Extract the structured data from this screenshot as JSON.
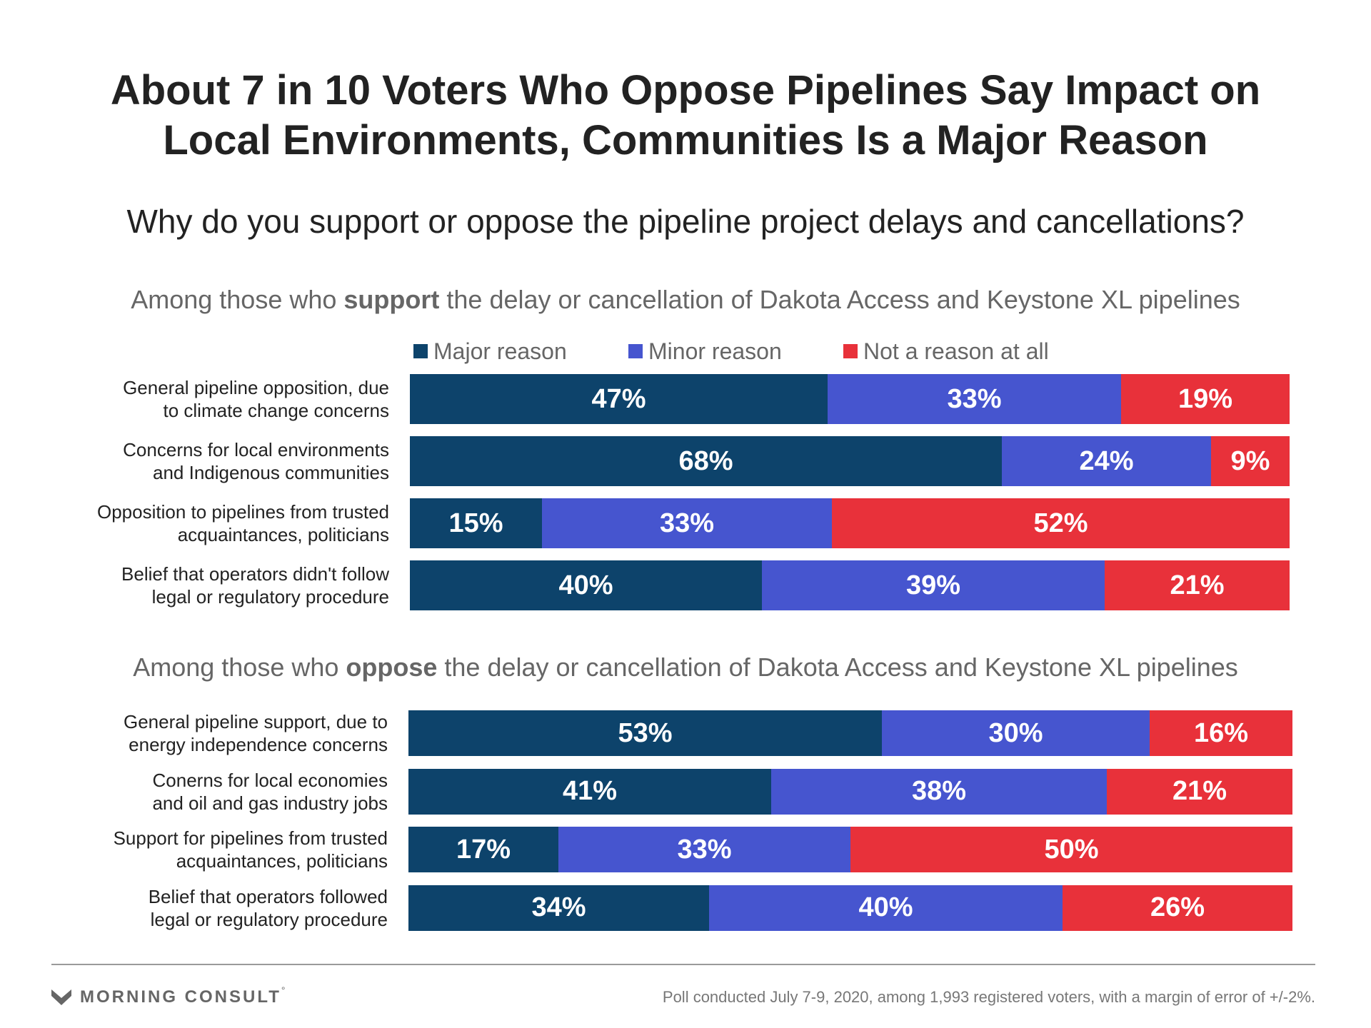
{
  "title": {
    "line1": "About 7 in 10 Voters Who Oppose Pipelines Say Impact on",
    "line2": "Local Environments, Communities Is a Major Reason"
  },
  "question": "Why do you support or oppose the pipeline project delays and cancellations?",
  "colors": {
    "major": "#0d436b",
    "minor": "#4655cf",
    "not": "#e8313a"
  },
  "chart_data": [
    {
      "type": "bar",
      "stacked": true,
      "orientation": "horizontal",
      "heading": {
        "prefix": "Among those who ",
        "emphasis": "support",
        "suffix": " the delay or cancellation of Dakota Access and Keystone XL pipelines"
      },
      "legend": [
        "Major reason",
        "Minor reason",
        "Not a reason at all"
      ],
      "categories": [
        "General pipeline opposition, due to climate change concerns",
        "Concerns for local environments and Indigenous communities",
        "Opposition to pipelines from trusted acquaintances, politicians",
        "Belief that operators didn't follow legal or regulatory procedure"
      ],
      "category_lines": [
        [
          "General pipeline opposition, due",
          "to climate change concerns"
        ],
        [
          "Concerns for local environments",
          "and Indigenous communities"
        ],
        [
          "Opposition to pipelines from trusted",
          "acquaintances, politicians"
        ],
        [
          "Belief that operators didn't follow",
          "legal or regulatory procedure"
        ]
      ],
      "series": [
        {
          "name": "Major reason",
          "values": [
            47,
            68,
            15,
            40
          ],
          "labels": [
            "47%",
            "68%",
            "15%",
            "40%"
          ]
        },
        {
          "name": "Minor reason",
          "values": [
            33,
            24,
            33,
            39
          ],
          "labels": [
            "33%",
            "24%",
            "33%",
            "39%"
          ]
        },
        {
          "name": "Not a reason at all",
          "values": [
            19,
            9,
            52,
            21
          ],
          "labels": [
            "19%",
            "9%",
            "52%",
            "21%"
          ]
        }
      ]
    },
    {
      "type": "bar",
      "stacked": true,
      "orientation": "horizontal",
      "heading": {
        "prefix": "Among those who ",
        "emphasis": "oppose",
        "suffix": " the delay or cancellation of Dakota Access and Keystone XL pipelines"
      },
      "categories": [
        "General pipeline support, due to energy independence concerns",
        "Conerns for local economies and oil and gas industry jobs",
        "Support for pipelines from trusted acquaintances, politicians",
        "Belief that operators followed legal or regulatory procedure"
      ],
      "category_lines": [
        [
          "General pipeline support, due to",
          "energy independence concerns"
        ],
        [
          "Conerns for local economies",
          "and oil and gas industry jobs"
        ],
        [
          "Support for pipelines from trusted",
          "acquaintances, politicians"
        ],
        [
          "Belief that operators followed",
          "legal or regulatory procedure"
        ]
      ],
      "series": [
        {
          "name": "Major reason",
          "values": [
            53,
            41,
            17,
            34
          ],
          "labels": [
            "53%",
            "41%",
            "17%",
            "34%"
          ]
        },
        {
          "name": "Minor reason",
          "values": [
            30,
            38,
            33,
            40
          ],
          "labels": [
            "30%",
            "38%",
            "33%",
            "40%"
          ]
        },
        {
          "name": "Not a reason at all",
          "values": [
            16,
            21,
            50,
            26
          ],
          "labels": [
            "16%",
            "21%",
            "50%",
            "26%"
          ]
        }
      ]
    }
  ],
  "footer": {
    "logo": "MORNING CONSULT",
    "logo_mark": "°",
    "note": "Poll conducted July 7-9, 2020, among 1,993 registered voters, with a margin of error of +/-2%."
  }
}
